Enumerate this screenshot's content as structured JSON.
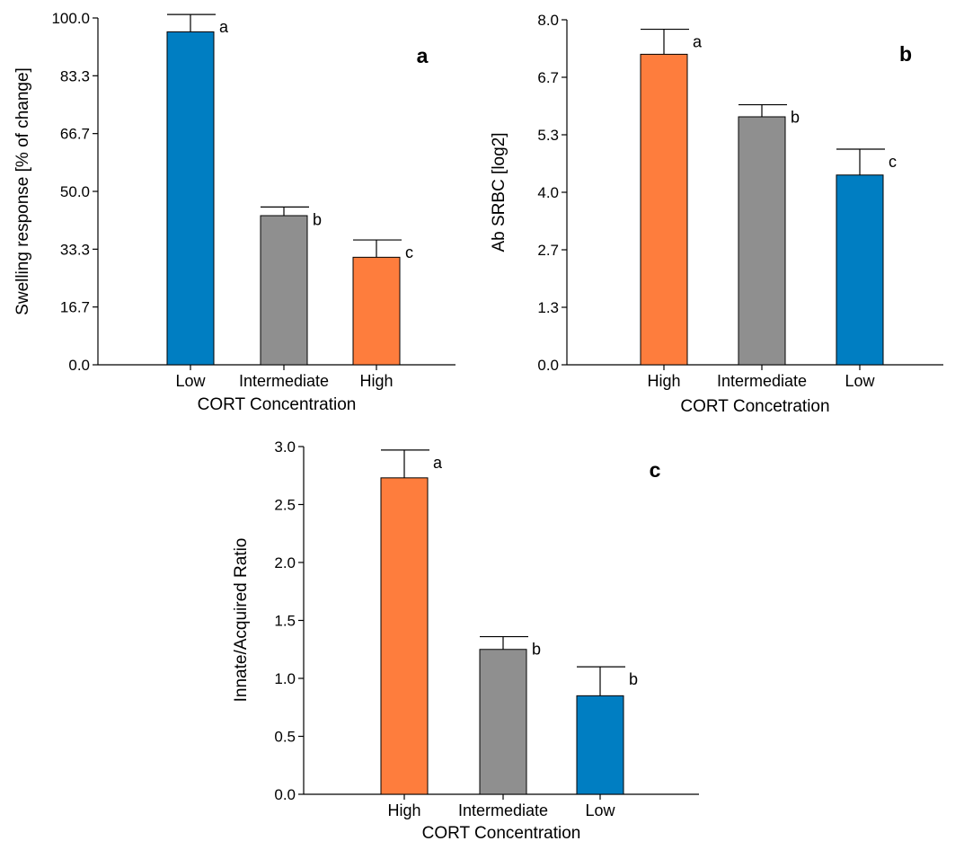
{
  "chart_data": [
    {
      "type": "bar",
      "panel_label": "a",
      "categories": [
        "Low",
        "Intermediate",
        "High"
      ],
      "values": [
        96.0,
        43.0,
        31.0
      ],
      "error_plus": [
        5.0,
        2.5,
        5.0
      ],
      "significance": [
        "a",
        "b",
        "c"
      ],
      "bar_colors": [
        "#007ec2",
        "#8f8f8f",
        "#fe7d3d"
      ],
      "xlabel": "CORT Concentration",
      "ylabel": "Swelling response  [% of change]",
      "ylim": [
        0,
        100
      ],
      "yticks": [
        "0.0",
        "16.7",
        "33.3",
        "50.0",
        "66.7",
        "83.3",
        "100.0"
      ],
      "grid": false
    },
    {
      "type": "bar",
      "panel_label": "b",
      "categories": [
        "High",
        "Intermediate",
        "Low"
      ],
      "values": [
        7.2,
        5.75,
        4.4
      ],
      "error_plus": [
        0.58,
        0.28,
        0.6
      ],
      "significance": [
        "a",
        "b",
        "c"
      ],
      "bar_colors": [
        "#fe7d3d",
        "#8f8f8f",
        "#007ec2"
      ],
      "xlabel": "CORT Concetration",
      "ylabel": "Ab SRBC [log2]",
      "ylim": [
        0,
        8.0
      ],
      "yticks": [
        "0.0",
        "1.3",
        "2.7",
        "4.0",
        "5.3",
        "6.7",
        "8.0"
      ],
      "grid": false
    },
    {
      "type": "bar",
      "panel_label": "c",
      "categories": [
        "High",
        "Intermediate",
        "Low"
      ],
      "values": [
        2.73,
        1.25,
        0.85
      ],
      "error_plus": [
        0.24,
        0.11,
        0.25
      ],
      "significance": [
        "a",
        "b",
        "b"
      ],
      "bar_colors": [
        "#fe7d3d",
        "#8f8f8f",
        "#007ec2"
      ],
      "xlabel": "CORT Concentration",
      "ylabel": "Innate/Acquired Ratio",
      "ylim": [
        0,
        3.0
      ],
      "yticks": [
        "0.0",
        "0.5",
        "1.0",
        "1.5",
        "2.0",
        "2.5",
        "3.0"
      ],
      "grid": false
    }
  ]
}
